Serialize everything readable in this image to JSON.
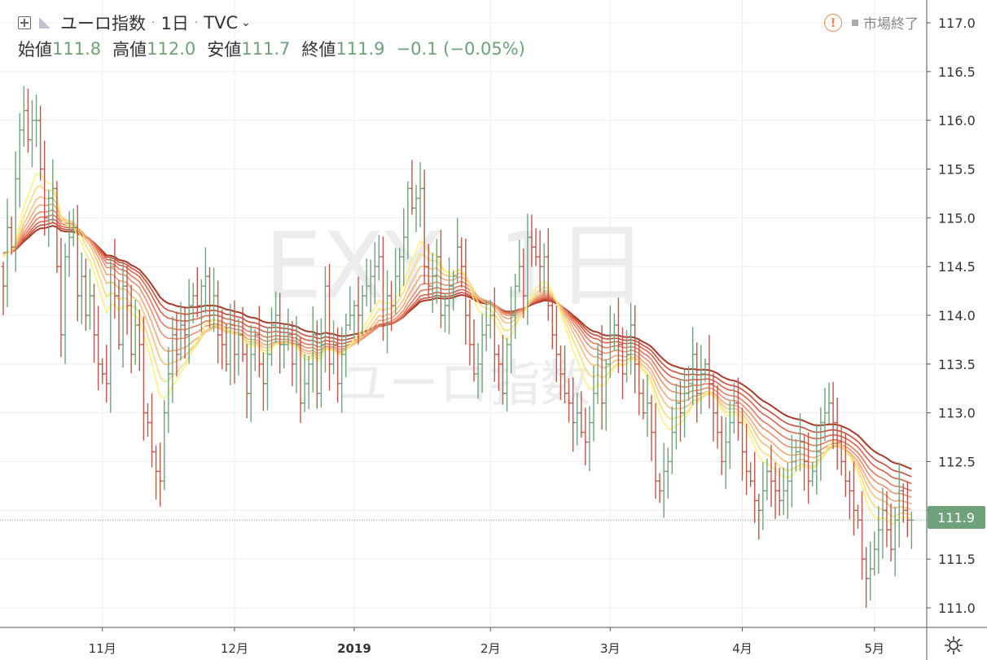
{
  "header": {
    "symbol_name": "ユーロ指数",
    "interval": "1日",
    "source": "TVC",
    "open_label": "始値",
    "open_value": "111.8",
    "high_label": "高値",
    "high_value": "112.0",
    "low_label": "安値",
    "low_value": "111.7",
    "close_label": "終値",
    "close_value": "111.9",
    "change": "−0.1 (−0.05%)",
    "market_status": "市場終了"
  },
  "watermark": {
    "symbol": "EXY, 1日",
    "name": "ユーロ指数"
  },
  "colors": {
    "up": "#6fa27a",
    "down": "#c0564a",
    "last_price_bg": "#6fa27a",
    "ribbon": [
      "#a83a2a",
      "#c84e3a",
      "#d8624a",
      "#e07a60",
      "#e89070",
      "#f0a878",
      "#f5c080",
      "#f8dc80",
      "#fff080"
    ]
  },
  "price_label": "111.9",
  "chart_data": {
    "type": "ohlc",
    "y_axis": {
      "min": 111.0,
      "max": 117.0,
      "step": 0.5,
      "ticks": [
        "111.0",
        "111.5",
        "112.0",
        "112.5",
        "113.0",
        "113.5",
        "114.0",
        "114.5",
        "115.0",
        "115.5",
        "116.0",
        "116.5",
        "117.0"
      ]
    },
    "x_axis": {
      "ticks": [
        {
          "label": "11月",
          "bar": 24
        },
        {
          "label": "12月",
          "bar": 56
        },
        {
          "label": "2019",
          "bar": 85
        },
        {
          "label": "2月",
          "bar": 118
        },
        {
          "label": "3月",
          "bar": 147
        },
        {
          "label": "4月",
          "bar": 179
        },
        {
          "label": "5月",
          "bar": 211
        }
      ]
    },
    "close": [
      114.3,
      114.9,
      114.7,
      115.4,
      115.9,
      116.1,
      115.8,
      116.0,
      116.0,
      115.5,
      115.0,
      115.2,
      115.3,
      114.5,
      113.8,
      114.6,
      114.8,
      114.9,
      114.2,
      114.4,
      114.0,
      114.2,
      113.8,
      113.5,
      113.4,
      113.3,
      114.5,
      114.2,
      113.7,
      114.3,
      114.1,
      113.6,
      113.9,
      113.7,
      113.0,
      112.9,
      112.6,
      112.4,
      112.3,
      113.0,
      113.4,
      113.8,
      113.6,
      113.9,
      113.8,
      114.1,
      114.2,
      114.1,
      114.3,
      114.4,
      114.0,
      114.2,
      113.8,
      113.7,
      113.5,
      113.9,
      113.6,
      113.8,
      113.6,
      113.2,
      113.6,
      113.8,
      113.5,
      113.3,
      113.6,
      113.9,
      114.0,
      113.7,
      113.7,
      113.8,
      113.5,
      113.7,
      113.1,
      113.3,
      113.5,
      113.8,
      113.2,
      113.7,
      114.3,
      113.5,
      113.7,
      113.3,
      113.6,
      113.9,
      114.0,
      114.1,
      114.0,
      114.2,
      114.3,
      114.4,
      114.5,
      114.6,
      113.9,
      114.2,
      114.1,
      114.4,
      114.6,
      114.8,
      115.3,
      115.1,
      115.2,
      115.3,
      114.5,
      114.3,
      114.4,
      114.6,
      114.0,
      114.1,
      114.3,
      114.4,
      114.7,
      114.5,
      114.0,
      113.7,
      113.4,
      113.5,
      113.8,
      113.9,
      114.0,
      113.6,
      113.5,
      113.2,
      113.7,
      114.0,
      114.3,
      114.5,
      114.2,
      114.8,
      114.7,
      114.6,
      114.5,
      114.6,
      114.1,
      113.8,
      113.6,
      113.4,
      113.2,
      113.1,
      112.9,
      113.0,
      112.8,
      112.7,
      112.9,
      113.2,
      113.6,
      113.1,
      113.5,
      113.8,
      113.9,
      113.7,
      113.4,
      113.6,
      113.9,
      113.5,
      113.2,
      113.0,
      113.1,
      112.8,
      112.3,
      112.2,
      112.4,
      112.5,
      112.8,
      113.1,
      113.0,
      113.2,
      113.3,
      113.6,
      113.2,
      113.4,
      113.5,
      113.3,
      113.0,
      112.8,
      112.5,
      112.7,
      112.9,
      113.1,
      112.9,
      112.6,
      112.4,
      112.3,
      112.1,
      112.0,
      112.2,
      112.4,
      112.3,
      112.2,
      112.1,
      112.2,
      112.3,
      112.5,
      112.6,
      112.7,
      112.5,
      112.3,
      112.4,
      112.6,
      112.9,
      113.0,
      113.1,
      112.9,
      112.7,
      112.5,
      112.3,
      112.2,
      112.0,
      111.9,
      111.5,
      111.3,
      111.4,
      111.6,
      111.8,
      112.0,
      111.8,
      111.6,
      111.9,
      112.2,
      112.0,
      111.9,
      111.9
    ],
    "last_price": 111.9
  }
}
